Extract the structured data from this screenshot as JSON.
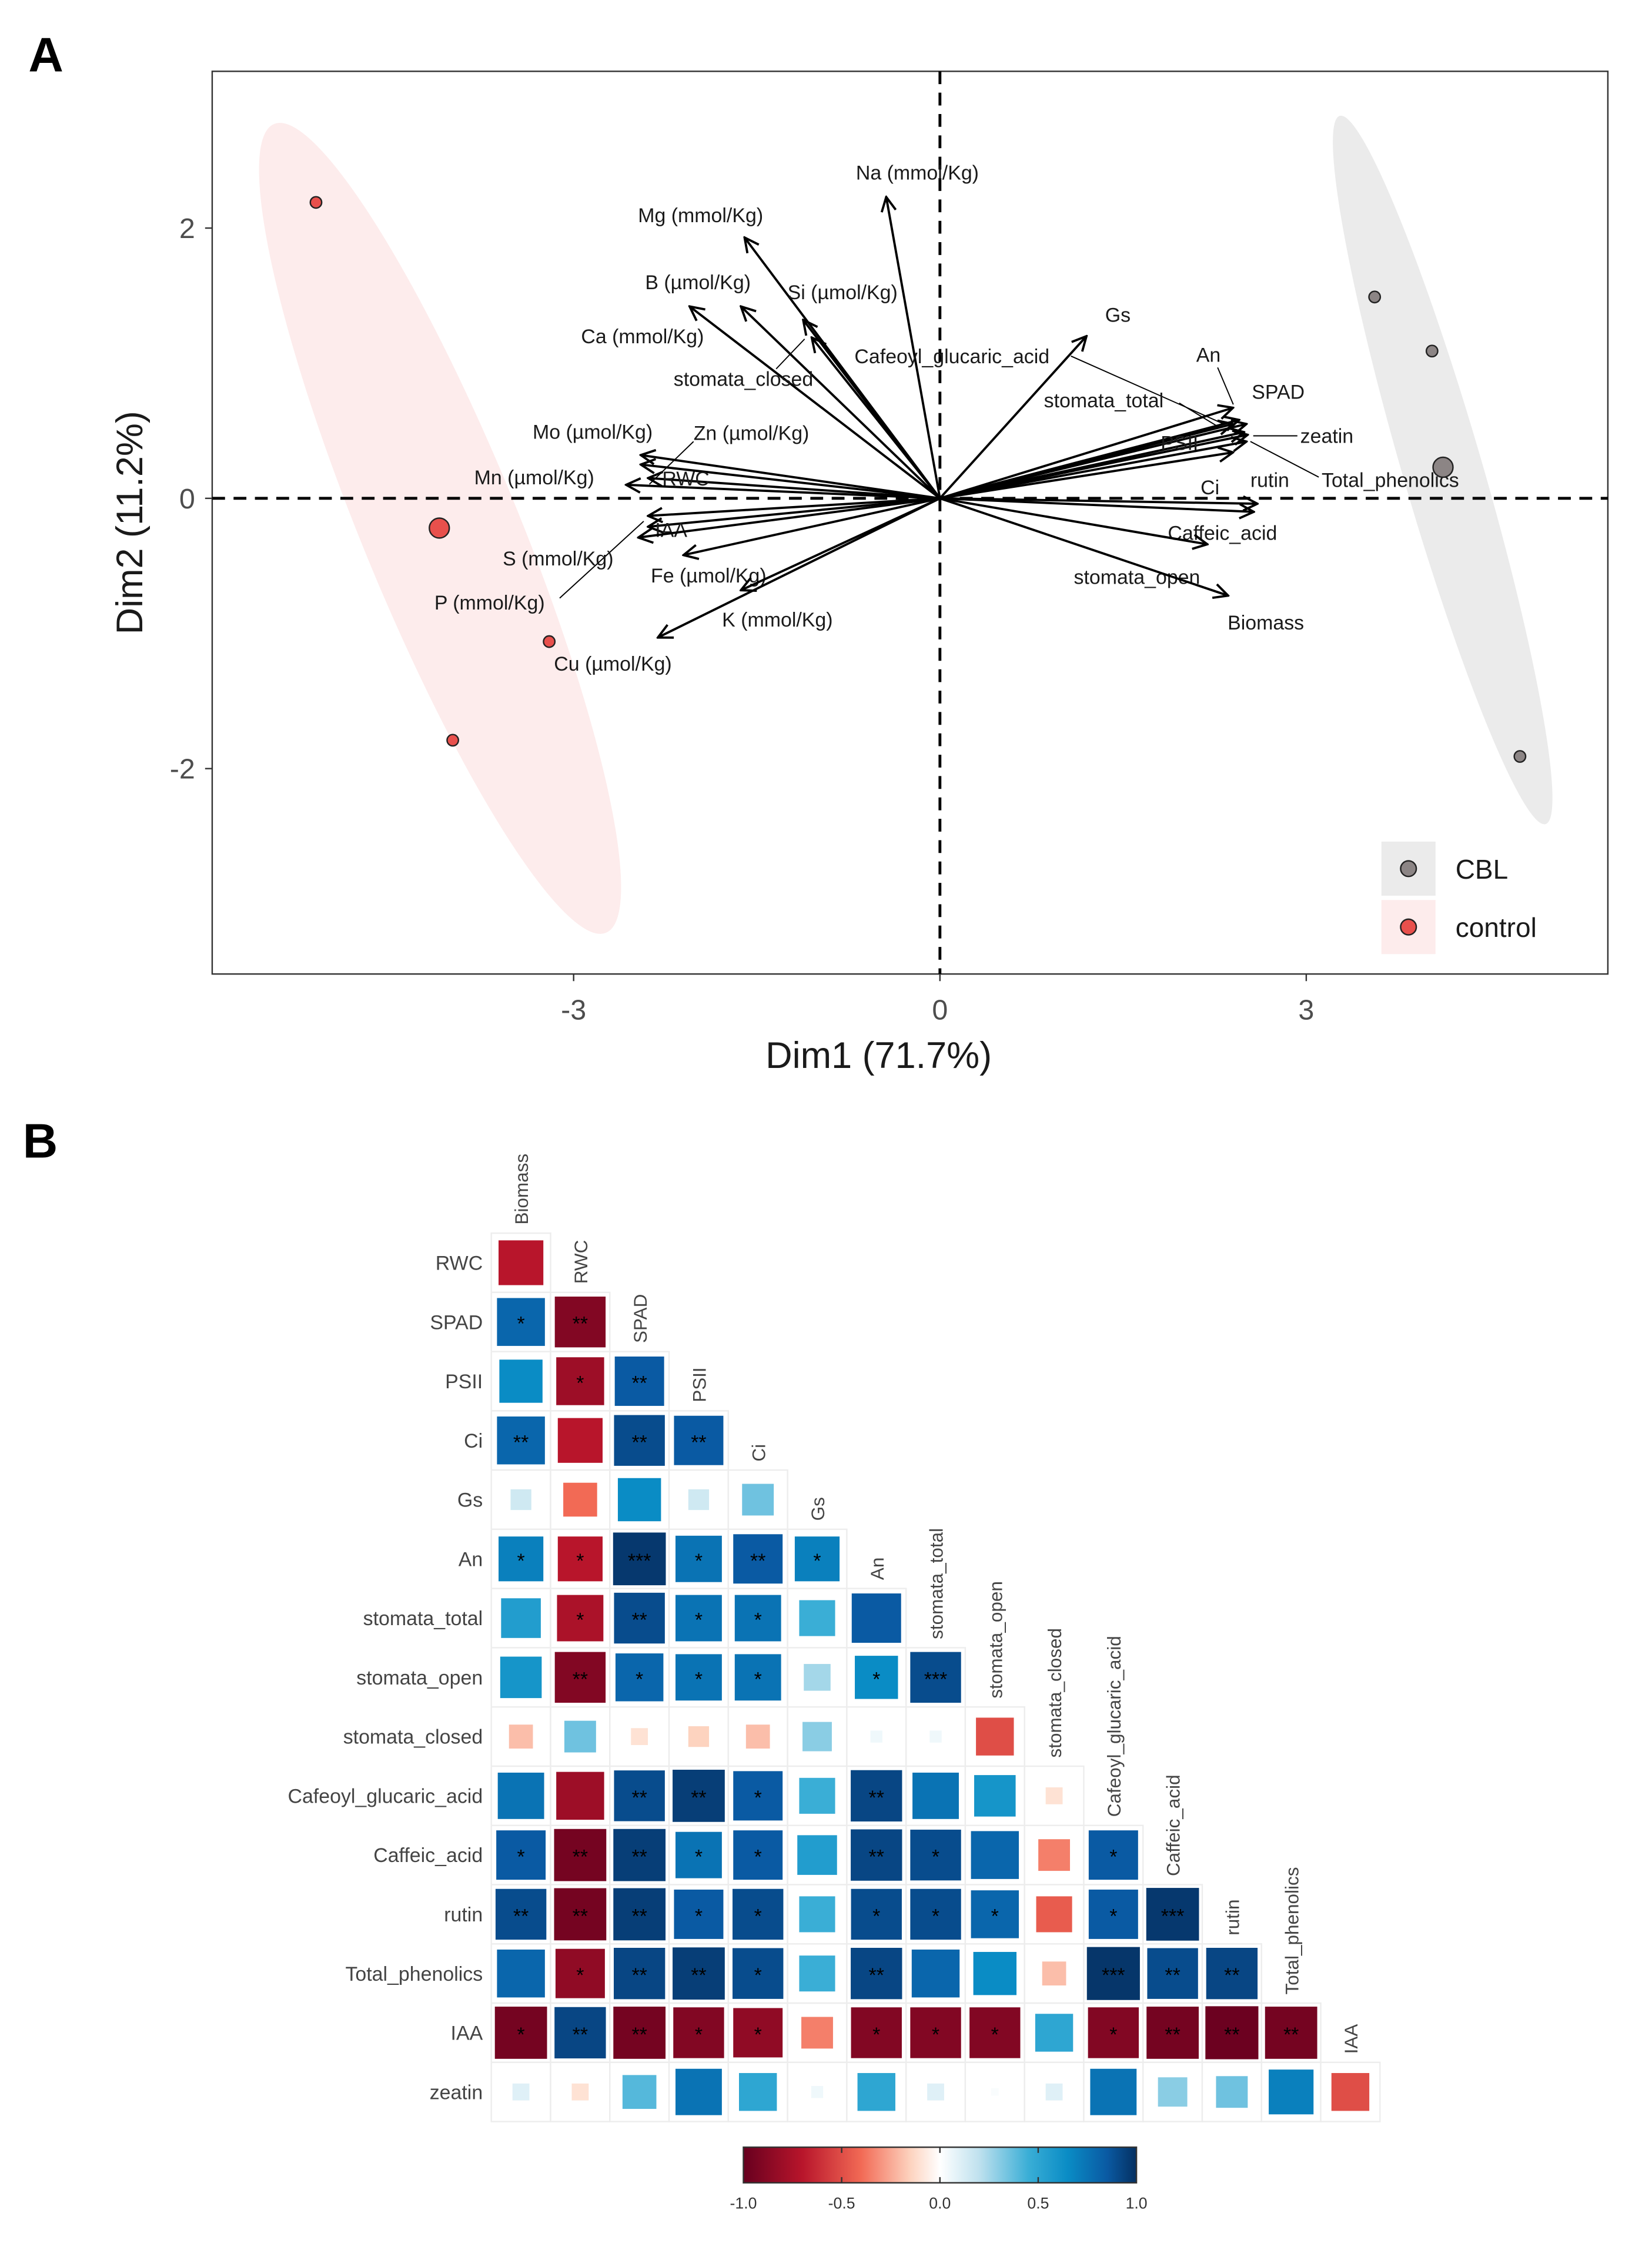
{
  "panels": {
    "a": "A",
    "b": "B"
  },
  "chart_data": [
    {
      "type": "scatter",
      "subtype": "pca-biplot",
      "xlabel": "Dim1 (71.7%)",
      "ylabel": "Dim2 (11.2%)",
      "xticks": [
        -3,
        0,
        3
      ],
      "yticks": [
        -2,
        0,
        2
      ],
      "xlim": [
        -5.96,
        5.47
      ],
      "ylim": [
        -3.52,
        3.16
      ],
      "grid": false,
      "legend_placement": "bottom-right",
      "groups": [
        {
          "name": "CBL",
          "color": "#8C8585",
          "ellipse_color": "#EBEBEB",
          "points": [
            [
              3.56,
              1.49
            ],
            [
              4.03,
              1.09
            ],
            [
              4.75,
              -1.91
            ]
          ],
          "centroid": [
            4.12,
            0.23
          ]
        },
        {
          "name": "control",
          "color": "#E8504C",
          "ellipse_color": "#FDECEC",
          "points": [
            [
              -5.11,
              2.19
            ],
            [
              -3.2,
              -1.06
            ],
            [
              -3.99,
              -1.79
            ]
          ],
          "centroid": [
            -4.1,
            -0.22
          ]
        }
      ],
      "variables": [
        {
          "name": "Na (mmol/Kg)",
          "x": -0.44,
          "y": 2.23
        },
        {
          "name": "Mg (mmol/Kg)",
          "x": -1.6,
          "y": 1.93
        },
        {
          "name": "B (µmol/Kg)",
          "x": -1.63,
          "y": 1.42
        },
        {
          "name": "Si (µmol/Kg)",
          "x": -1.12,
          "y": 1.32
        },
        {
          "name": "Ca (mmol/Kg)",
          "x": -2.05,
          "y": 1.42
        },
        {
          "name": "stomata_closed",
          "x": -1.05,
          "y": 1.19
        },
        {
          "name": "Cafeoyl_glucaric_acid",
          "x": 2.4,
          "y": 0.55
        },
        {
          "name": "Gs",
          "x": 1.2,
          "y": 1.2
        },
        {
          "name": "An",
          "x": 2.4,
          "y": 0.67
        },
        {
          "name": "stomata_total",
          "x": 2.45,
          "y": 0.58
        },
        {
          "name": "SPAD",
          "x": 2.51,
          "y": 0.55
        },
        {
          "name": "zeatin",
          "x": 2.52,
          "y": 0.47
        },
        {
          "name": "PSII",
          "x": 2.49,
          "y": 0.49
        },
        {
          "name": "Total_phenolics",
          "x": 2.51,
          "y": 0.42
        },
        {
          "name": "rutin",
          "x": 2.4,
          "y": 0.34
        },
        {
          "name": "Ci",
          "x": 2.6,
          "y": -0.04
        },
        {
          "name": "Caffeic_acid",
          "x": 2.57,
          "y": -0.1
        },
        {
          "name": "stomata_open",
          "x": 2.19,
          "y": -0.34
        },
        {
          "name": "Biomass",
          "x": 2.36,
          "y": -0.72
        },
        {
          "name": "Mo (µmol/Kg)",
          "x": -2.45,
          "y": 0.32
        },
        {
          "name": "Zn (µmol/Kg)",
          "x": -2.45,
          "y": 0.25
        },
        {
          "name": "RWC",
          "x": -2.39,
          "y": 0.15
        },
        {
          "name": "Mn (µmol/Kg)",
          "x": -2.57,
          "y": 0.1
        },
        {
          "name": "IAA",
          "x": -2.39,
          "y": -0.21
        },
        {
          "name": "S (mmol/Kg)",
          "x": -2.47,
          "y": -0.29
        },
        {
          "name": "P (mmol/Kg)",
          "x": -2.39,
          "y": -0.13
        },
        {
          "name": "Fe (µmol/Kg)",
          "x": -2.1,
          "y": -0.42
        },
        {
          "name": "K (mmol/Kg)",
          "x": -1.63,
          "y": -0.68
        },
        {
          "name": "Cu (µmol/Kg)",
          "x": -2.31,
          "y": -1.03
        }
      ]
    },
    {
      "type": "heatmap",
      "subtype": "correlation-matrix-lower",
      "columns": [
        "Biomass",
        "RWC",
        "SPAD",
        "PSII",
        "Ci",
        "Gs",
        "An",
        "stomata_total",
        "stomata_open",
        "stomata_closed",
        "Cafeoyl_glucaric_acid",
        "Caffeic_acid",
        "rutin",
        "Total_phenolics",
        "IAA"
      ],
      "rows": [
        "RWC",
        "SPAD",
        "PSII",
        "Ci",
        "Gs",
        "An",
        "stomata_total",
        "stomata_open",
        "stomata_closed",
        "Cafeoyl_glucaric_acid",
        "Caffeic_acid",
        "rutin",
        "Total_phenolics",
        "IAA",
        "zeatin"
      ],
      "r": [
        [
          -0.7
        ],
        [
          0.8,
          -0.9
        ],
        [
          0.65,
          -0.8,
          0.85
        ],
        [
          0.8,
          -0.7,
          0.9,
          0.85
        ],
        [
          0.15,
          -0.4,
          0.65,
          0.15,
          0.35
        ],
        [
          0.7,
          -0.7,
          0.97,
          0.75,
          0.85,
          0.7
        ],
        [
          0.55,
          -0.75,
          0.9,
          0.75,
          0.75,
          0.45,
          0.85
        ],
        [
          0.6,
          -0.9,
          0.8,
          0.75,
          0.75,
          0.25,
          0.65,
          0.9
        ],
        [
          -0.2,
          0.35,
          -0.1,
          -0.15,
          -0.2,
          0.3,
          0.05,
          0.05,
          -0.5
        ],
        [
          0.75,
          -0.8,
          0.9,
          0.95,
          0.85,
          0.45,
          0.92,
          0.75,
          0.6,
          -0.1
        ],
        [
          0.85,
          -0.95,
          0.95,
          0.75,
          0.85,
          0.55,
          0.92,
          0.9,
          0.8,
          -0.35,
          0.85
        ],
        [
          0.9,
          -0.95,
          0.95,
          0.85,
          0.9,
          0.45,
          0.9,
          0.9,
          0.8,
          -0.45,
          0.85,
          0.97
        ],
        [
          0.8,
          -0.85,
          0.92,
          0.95,
          0.9,
          0.45,
          0.92,
          0.8,
          0.65,
          -0.2,
          0.98,
          0.9,
          0.92
        ],
        [
          -0.95,
          0.92,
          -0.95,
          -0.9,
          -0.85,
          -0.35,
          -0.9,
          -0.9,
          -0.9,
          0.5,
          -0.9,
          -0.95,
          -0.98,
          -0.95
        ],
        [
          0.1,
          -0.1,
          0.4,
          0.75,
          0.5,
          0.05,
          0.5,
          0.1,
          0.02,
          0.1,
          0.75,
          0.3,
          0.35,
          0.7,
          -0.5
        ]
      ],
      "sig": [
        [
          ""
        ],
        [
          "*",
          "**"
        ],
        [
          "",
          "*",
          "**"
        ],
        [
          "**",
          "",
          "**",
          "**"
        ],
        [
          "",
          "",
          "",
          "",
          ""
        ],
        [
          "*",
          "*",
          "***",
          "*",
          "**",
          "*"
        ],
        [
          "",
          "*",
          "**",
          "*",
          "*",
          "",
          ""
        ],
        [
          "",
          "**",
          "*",
          "*",
          "*",
          "",
          "*",
          "***"
        ],
        [
          "",
          "",
          "",
          "",
          "",
          "",
          "",
          "",
          ""
        ],
        [
          "",
          "",
          "**",
          "**",
          "*",
          "",
          "**",
          "",
          "",
          ""
        ],
        [
          "*",
          "**",
          "**",
          "*",
          "*",
          "",
          "**",
          "*",
          "",
          "",
          "*"
        ],
        [
          "**",
          "**",
          "**",
          "*",
          "*",
          "",
          "*",
          "*",
          "*",
          "",
          "*",
          "***"
        ],
        [
          "",
          "*",
          "**",
          "**",
          "*",
          "",
          "**",
          "",
          "",
          "",
          "***",
          "**",
          "**"
        ],
        [
          "*",
          "**",
          "**",
          "*",
          "*",
          "",
          "*",
          "*",
          "*",
          "",
          "*",
          "**",
          "**",
          "**"
        ],
        [
          "",
          "",
          "",
          "",
          "",
          "",
          "",
          "",
          "",
          "",
          "",
          "",
          "",
          "",
          ""
        ]
      ],
      "an_row_fix": true,
      "colorbar": {
        "ticks": [
          "-1.0",
          "-0.5",
          "0.0",
          "0.5",
          "1.0"
        ],
        "range": [
          -1,
          1
        ]
      },
      "colorscale": [
        [
          -1,
          "#67001F"
        ],
        [
          -0.7,
          "#B8152B"
        ],
        [
          -0.4,
          "#F26A55"
        ],
        [
          -0.15,
          "#FDD3BF"
        ],
        [
          0,
          "#FFFFFF"
        ],
        [
          0.2,
          "#BFE1EE"
        ],
        [
          0.45,
          "#3AAED6"
        ],
        [
          0.65,
          "#0A8CC5"
        ],
        [
          0.85,
          "#0A5AA3"
        ],
        [
          1,
          "#053061"
        ]
      ]
    }
  ]
}
